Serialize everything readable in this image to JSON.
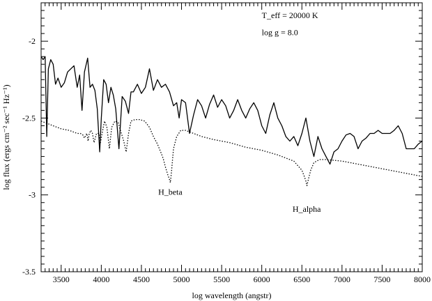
{
  "chart_data": {
    "type": "line",
    "title": "",
    "xlabel": "log wavelength (angstr)",
    "ylabel": "log flux (ergs cm⁻² sec⁻¹ Hz⁻¹)",
    "xlim": [
      3250,
      8000
    ],
    "ylim": [
      -3.5,
      -1.75
    ],
    "xticks": [
      3500,
      4000,
      4500,
      5000,
      5500,
      6000,
      6500,
      7000,
      7500,
      8000
    ],
    "xtick_labels": [
      "3500",
      "4000",
      "4500",
      "5000",
      "5500",
      "6000",
      "6500",
      "7000",
      "7500",
      "8000"
    ],
    "yticks": [
      -3.5,
      -3,
      -2.5,
      -2
    ],
    "ytick_labels": [
      "-3.5",
      "-3",
      "-2.5",
      "-2"
    ],
    "grid": false,
    "legend": "none",
    "annotations": [
      {
        "text": "T_eff = 20000 K",
        "x": 6000,
        "y": -1.85
      },
      {
        "text": "log g = 8.0",
        "x": 6000,
        "y": -1.96
      },
      {
        "text": "H_beta",
        "x": 4860,
        "y": -3.0
      },
      {
        "text": "H_alpha",
        "x": 6560,
        "y": -3.11
      }
    ],
    "series": [
      {
        "style": "solid",
        "color": "#000000",
        "x": [
          3250,
          3275,
          3300,
          3320,
          3340,
          3370,
          3400,
          3430,
          3460,
          3500,
          3540,
          3580,
          3620,
          3660,
          3700,
          3730,
          3760,
          3790,
          3830,
          3860,
          3890,
          3920,
          3950,
          3980,
          4000,
          4030,
          4060,
          4090,
          4120,
          4150,
          4180,
          4220,
          4260,
          4300,
          4340,
          4370,
          4400,
          4450,
          4500,
          4550,
          4600,
          4650,
          4700,
          4750,
          4800,
          4850,
          4900,
          4940,
          4970,
          5000,
          5050,
          5100,
          5150,
          5200,
          5250,
          5300,
          5350,
          5400,
          5450,
          5500,
          5550,
          5600,
          5650,
          5700,
          5750,
          5800,
          5850,
          5900,
          5950,
          6000,
          6050,
          6100,
          6150,
          6200,
          6250,
          6300,
          6350,
          6400,
          6450,
          6500,
          6550,
          6600,
          6650,
          6700,
          6750,
          6800,
          6850,
          6900,
          6950,
          7000,
          7050,
          7100,
          7150,
          7200,
          7250,
          7300,
          7350,
          7400,
          7450,
          7500,
          7550,
          7600,
          7650,
          7700,
          7750,
          7800,
          7850,
          7900,
          7950,
          8000
        ],
        "y": [
          -2.1,
          -2.12,
          -2.1,
          -2.62,
          -2.18,
          -2.12,
          -2.15,
          -2.28,
          -2.24,
          -2.3,
          -2.27,
          -2.2,
          -2.18,
          -2.16,
          -2.3,
          -2.22,
          -2.45,
          -2.2,
          -2.11,
          -2.3,
          -2.28,
          -2.32,
          -2.44,
          -2.72,
          -2.5,
          -2.25,
          -2.28,
          -2.4,
          -2.3,
          -2.35,
          -2.44,
          -2.7,
          -2.36,
          -2.39,
          -2.47,
          -2.33,
          -2.33,
          -2.28,
          -2.34,
          -2.3,
          -2.18,
          -2.32,
          -2.25,
          -2.3,
          -2.28,
          -2.33,
          -2.42,
          -2.4,
          -2.5,
          -2.38,
          -2.4,
          -2.6,
          -2.48,
          -2.38,
          -2.42,
          -2.5,
          -2.41,
          -2.35,
          -2.43,
          -2.38,
          -2.42,
          -2.5,
          -2.45,
          -2.38,
          -2.45,
          -2.5,
          -2.44,
          -2.4,
          -2.45,
          -2.55,
          -2.6,
          -2.48,
          -2.4,
          -2.5,
          -2.55,
          -2.62,
          -2.65,
          -2.62,
          -2.68,
          -2.6,
          -2.5,
          -2.65,
          -2.75,
          -2.62,
          -2.7,
          -2.75,
          -2.8,
          -2.72,
          -2.7,
          -2.65,
          -2.61,
          -2.6,
          -2.62,
          -2.7,
          -2.65,
          -2.63,
          -2.6,
          -2.6,
          -2.58,
          -2.6,
          -2.6,
          -2.6,
          -2.58,
          -2.55,
          -2.6,
          -2.7,
          -2.7,
          -2.7,
          -2.67,
          -2.65
        ]
      },
      {
        "style": "dotted",
        "color": "#000000",
        "x": [
          3250,
          3300,
          3400,
          3500,
          3600,
          3700,
          3740,
          3770,
          3790,
          3820,
          3835,
          3850,
          3870,
          3890,
          3910,
          3940,
          3970,
          3990,
          4010,
          4040,
          4070,
          4101,
          4130,
          4170,
          4210,
          4250,
          4280,
          4310,
          4340,
          4370,
          4420,
          4480,
          4540,
          4600,
          4650,
          4700,
          4740,
          4770,
          4800,
          4830,
          4850,
          4861,
          4875,
          4900,
          4940,
          4990,
          5050,
          5150,
          5250,
          5400,
          5600,
          5800,
          6000,
          6200,
          6300,
          6400,
          6450,
          6500,
          6530,
          6550,
          6563,
          6580,
          6610,
          6650,
          6720,
          6800,
          7000,
          7200,
          7400,
          7600,
          7800,
          8000
        ],
        "y": [
          -2.52,
          -2.53,
          -2.55,
          -2.57,
          -2.58,
          -2.6,
          -2.6,
          -2.61,
          -2.63,
          -2.6,
          -2.65,
          -2.6,
          -2.58,
          -2.6,
          -2.66,
          -2.6,
          -2.6,
          -2.66,
          -2.6,
          -2.52,
          -2.56,
          -2.7,
          -2.56,
          -2.52,
          -2.53,
          -2.6,
          -2.65,
          -2.72,
          -2.6,
          -2.52,
          -2.51,
          -2.51,
          -2.52,
          -2.56,
          -2.62,
          -2.67,
          -2.72,
          -2.76,
          -2.82,
          -2.87,
          -2.9,
          -2.92,
          -2.85,
          -2.7,
          -2.62,
          -2.58,
          -2.58,
          -2.6,
          -2.62,
          -2.64,
          -2.66,
          -2.69,
          -2.71,
          -2.74,
          -2.76,
          -2.78,
          -2.81,
          -2.84,
          -2.88,
          -2.91,
          -2.94,
          -2.9,
          -2.84,
          -2.79,
          -2.77,
          -2.77,
          -2.78,
          -2.8,
          -2.82,
          -2.84,
          -2.86,
          -2.88
        ]
      }
    ]
  }
}
